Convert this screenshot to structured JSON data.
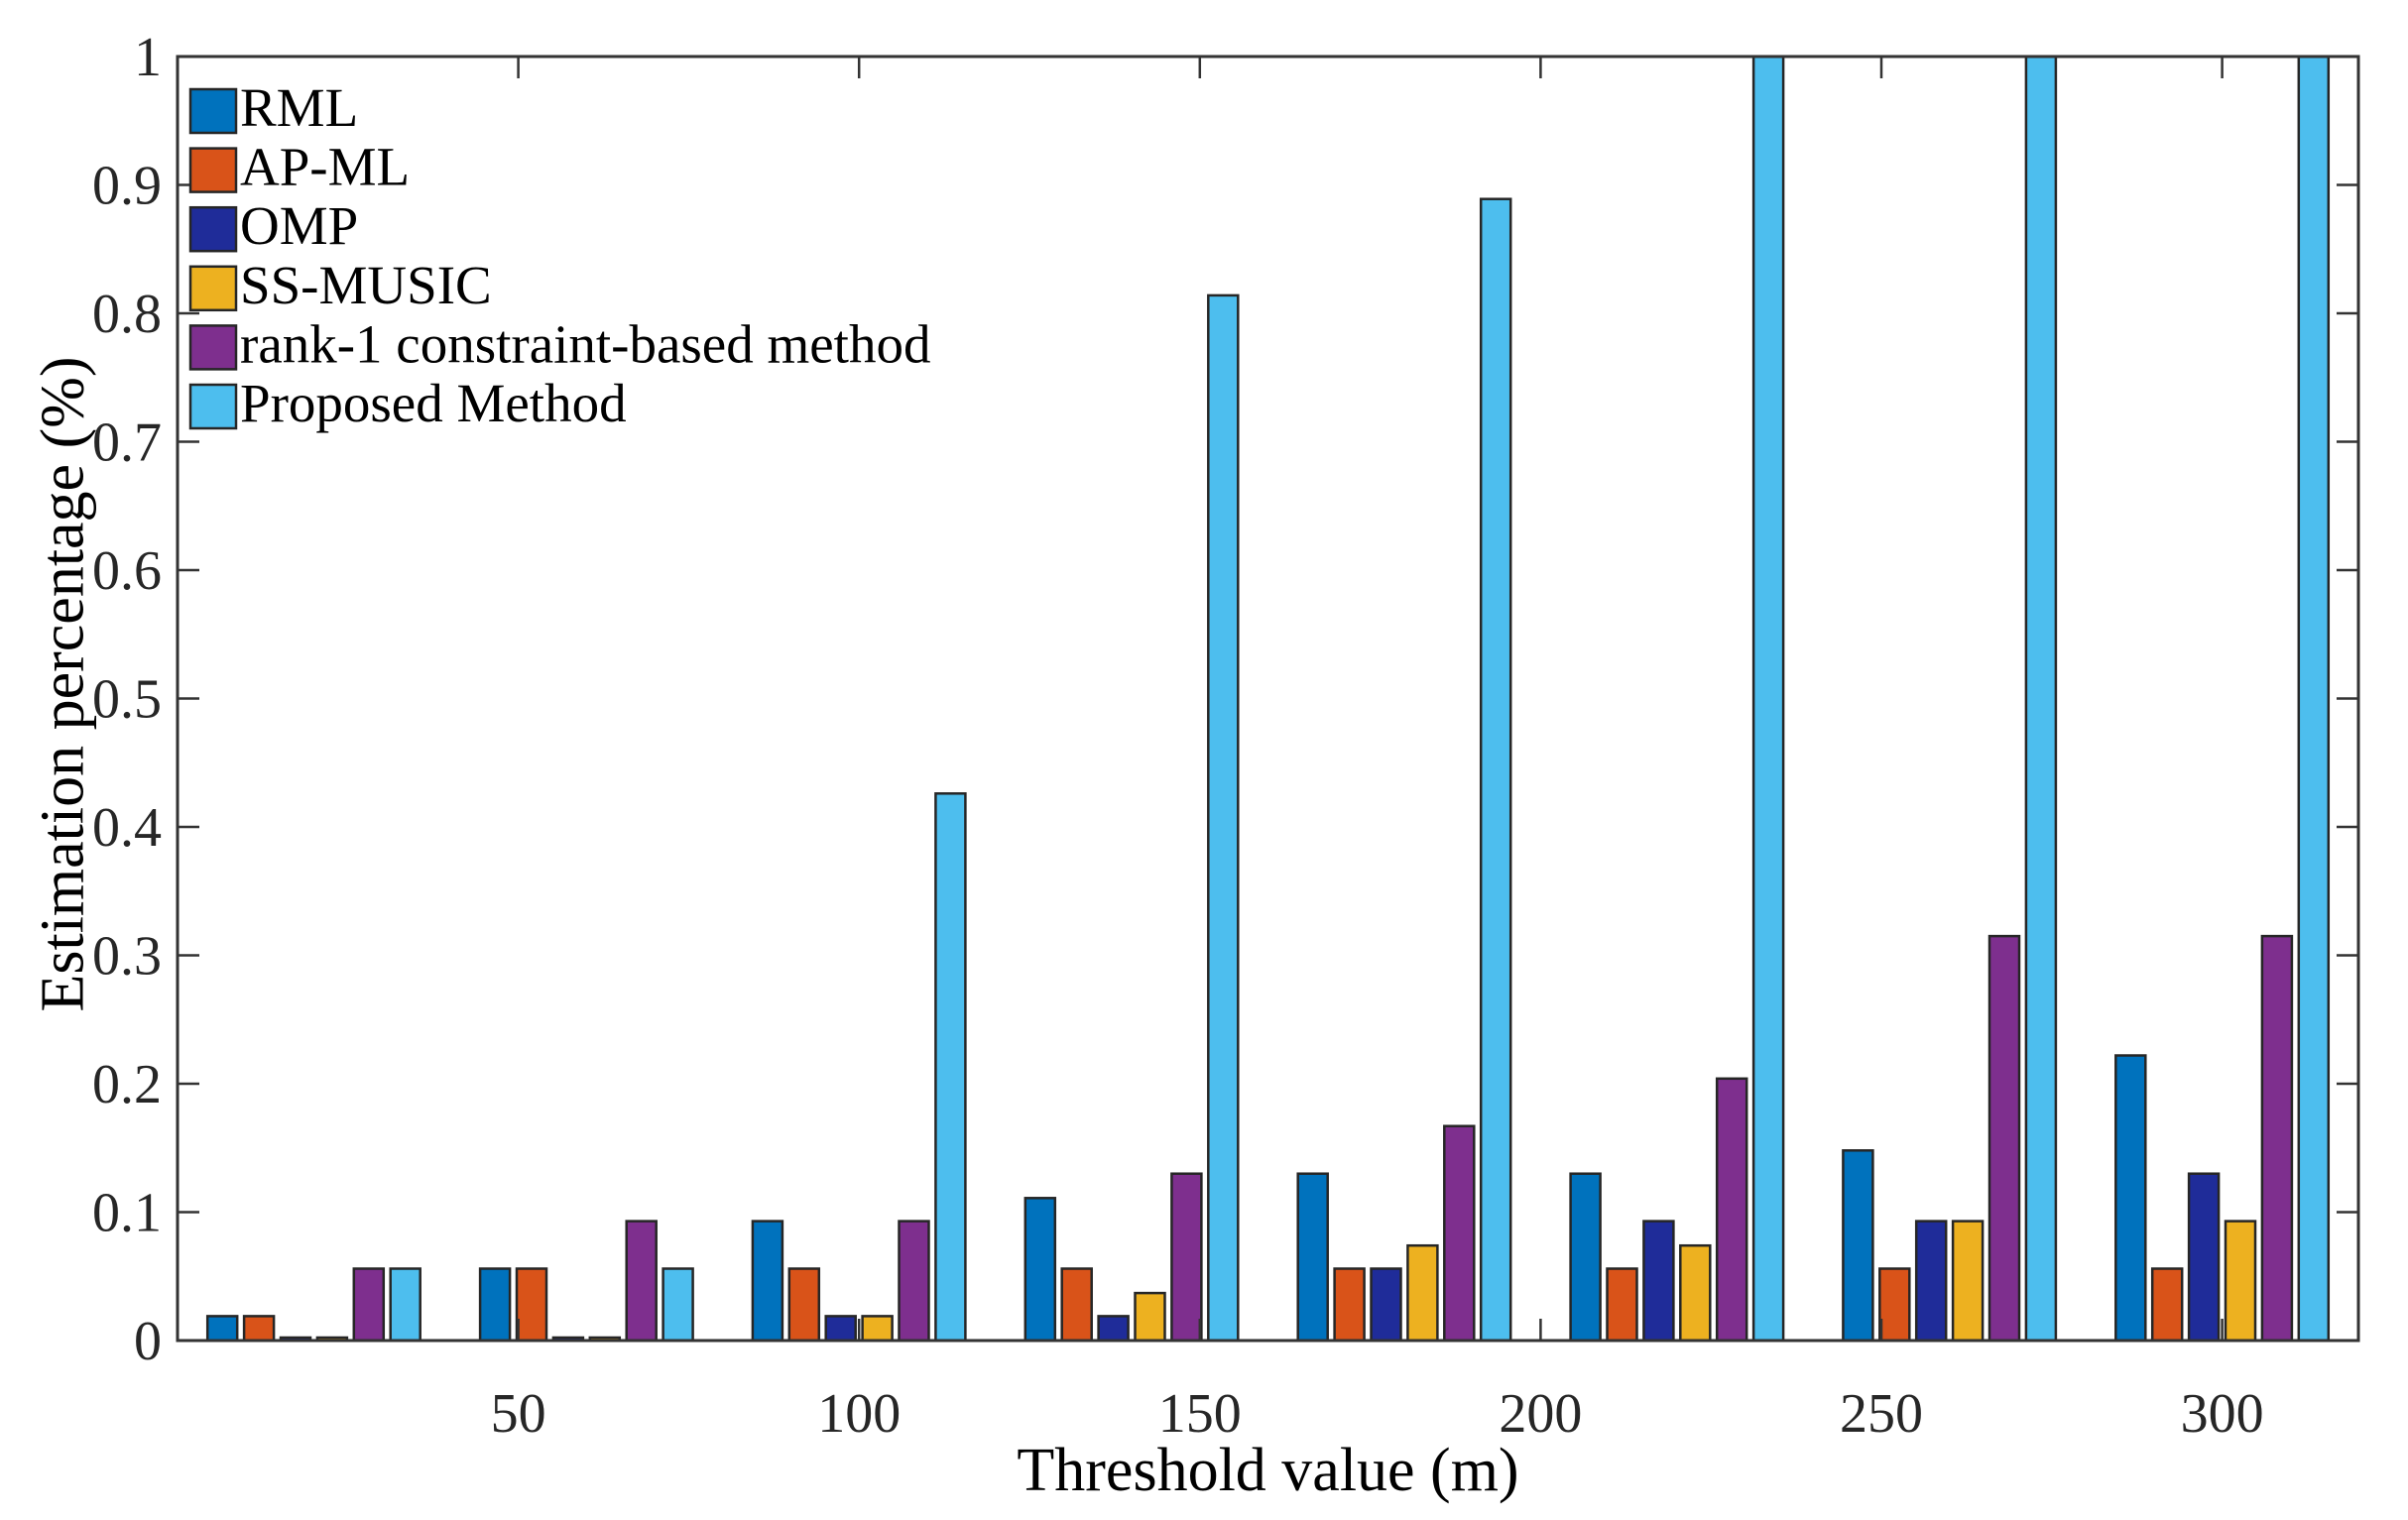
{
  "figure": {
    "background": "#ffffff"
  },
  "chart_data": {
    "type": "bar",
    "title": "",
    "xlabel": "Threshold value (m)",
    "ylabel": "Estimation percentage (%)",
    "xlim": [
      0,
      320
    ],
    "ylim": [
      0,
      1
    ],
    "x_ticks": [
      50,
      100,
      150,
      200,
      250,
      300
    ],
    "y_ticks": [
      0,
      0.1,
      0.2,
      0.3,
      0.4,
      0.5,
      0.6,
      0.7,
      0.8,
      0.9,
      1
    ],
    "grid": false,
    "legend_position": "top-left",
    "legend_frame": false,
    "axis_color": "#333333",
    "tick_label_color": "#262626",
    "bar_edge_color": "#262626",
    "categories": [
      20,
      60,
      100,
      140,
      180,
      220,
      260,
      300
    ],
    "series": [
      {
        "name": "RML",
        "color": "#0072BD",
        "values": [
          0.019,
          0.056,
          0.093,
          0.111,
          0.13,
          0.13,
          0.148,
          0.222
        ]
      },
      {
        "name": "AP-ML",
        "color": "#D95319",
        "values": [
          0.019,
          0.056,
          0.056,
          0.056,
          0.056,
          0.056,
          0.056,
          0.056
        ]
      },
      {
        "name": "OMP",
        "color": "#1F2C99",
        "values": [
          0,
          0,
          0.019,
          0.019,
          0.056,
          0.093,
          0.093,
          0.13
        ]
      },
      {
        "name": "SS-MUSIC",
        "color": "#EDB120",
        "values": [
          0,
          0,
          0.019,
          0.037,
          0.074,
          0.074,
          0.093,
          0.093
        ]
      },
      {
        "name": "rank-1 constraint-based method",
        "color": "#7E2F8E",
        "values": [
          0.056,
          0.093,
          0.093,
          0.13,
          0.167,
          0.204,
          0.315,
          0.315
        ]
      },
      {
        "name": "Proposed Method",
        "color": "#4DBEEE",
        "values": [
          0.056,
          0.056,
          0.426,
          0.814,
          0.889,
          1.0,
          1.0,
          1.0
        ]
      }
    ]
  }
}
